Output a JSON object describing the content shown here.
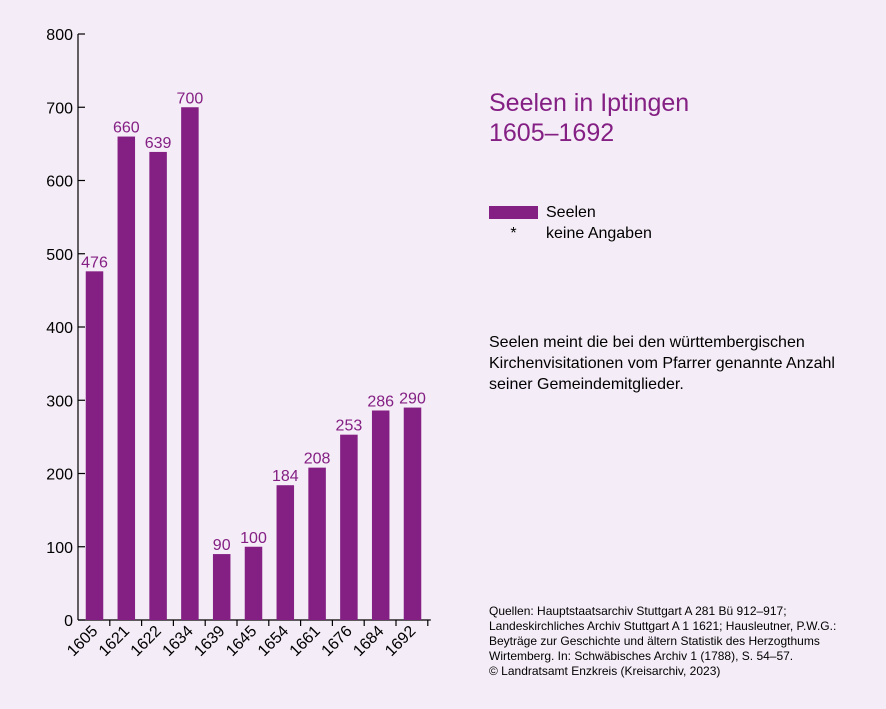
{
  "title_line1": "Seelen in Iptingen",
  "title_line2": "1605–1692",
  "legend": {
    "series_label": "Seelen",
    "missing_symbol": "*",
    "missing_label": "keine Angaben"
  },
  "note": "Seelen meint die bei den württembergischen Kirchenvisitationen vom Pfarrer genannte Anzahl seiner Gemeindemitglieder.",
  "sources": [
    "Quellen: Hauptstaatsarchiv Stuttgart A 281 Bü 912–917;",
    "Landeskirchliches Archiv Stuttgart A 1 1621; Hausleutner, P.W.G.:",
    "Beyträge zur Geschichte und ältern Statistik des Herzogthums",
    "Wirtemberg. In: Schwäbisches Archiv 1 (1788), S. 54–57.",
    "© Landratsamt Enzkreis (Kreisarchiv, 2023)"
  ],
  "colors": {
    "bar": "#841f84",
    "background": "#f4ecf6"
  },
  "chart_data": {
    "type": "bar",
    "categories": [
      "1605",
      "1621",
      "1622",
      "1634",
      "1639",
      "1645",
      "1654",
      "1661",
      "1676",
      "1684",
      "1692"
    ],
    "series": [
      {
        "name": "Seelen",
        "values": [
          476,
          660,
          639,
          700,
          90,
          100,
          184,
          208,
          253,
          286,
          290
        ]
      }
    ],
    "ylim": [
      0,
      800
    ],
    "yticks": [
      0,
      100,
      200,
      300,
      400,
      500,
      600,
      700,
      800
    ],
    "title": "Seelen in Iptingen 1605–1692",
    "grid": false,
    "data_labels": true
  }
}
